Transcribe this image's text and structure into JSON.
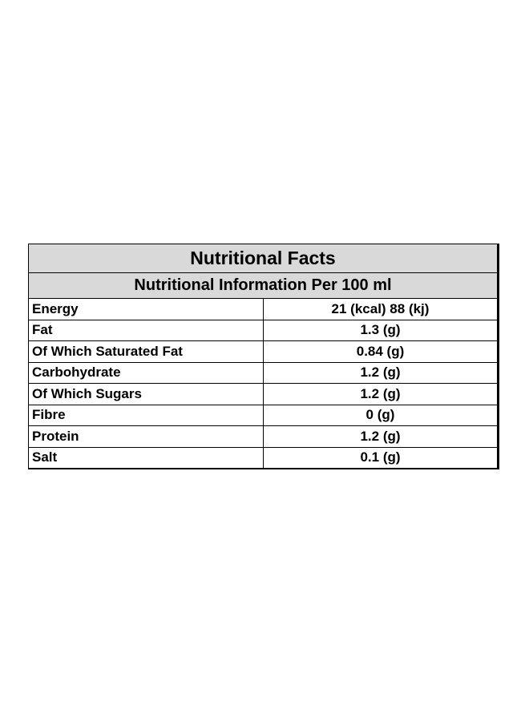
{
  "table": {
    "title": "Nutritional Facts",
    "subtitle": "Nutritional Information Per 100 ml",
    "rows": [
      {
        "name": "Energy",
        "value": "21 (kcal) 88 (kj)"
      },
      {
        "name": "Fat",
        "value": "1.3 (g)"
      },
      {
        "name": "Of Which Saturated Fat",
        "value": "0.84 (g)"
      },
      {
        "name": "Carbohydrate",
        "value": "1.2 (g)"
      },
      {
        "name": "Of Which Sugars",
        "value": "1.2 (g)"
      },
      {
        "name": "Fibre",
        "value": "0 (g)"
      },
      {
        "name": "Protein",
        "value": "1.2 (g)"
      },
      {
        "name": "Salt",
        "value": "0.1 (g)"
      }
    ]
  },
  "colors": {
    "header_background": "#d9d9d9",
    "border": "#000000",
    "page_background": "#ffffff"
  }
}
